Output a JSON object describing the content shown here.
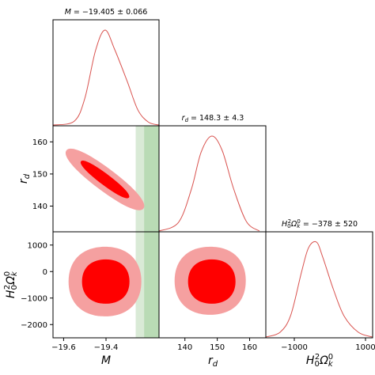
{
  "chart_data": [
    {
      "type": "line",
      "panel": "M",
      "title": "M = −19.405 ± 0.066",
      "title_parts": {
        "lead": "M",
        "rest": " = −19.405 ± 0.066"
      },
      "x": [
        -19.65,
        -19.55,
        -19.5,
        -19.45,
        -19.405,
        -19.36,
        -19.3,
        -19.25,
        -19.2,
        -19.15
      ],
      "y": [
        0.0,
        0.04,
        0.28,
        0.78,
        1.0,
        0.8,
        0.46,
        0.16,
        0.03,
        0.0
      ],
      "xlim": [
        -19.65,
        -19.15
      ],
      "color": "#d9534f"
    },
    {
      "type": "line",
      "panel": "r_d",
      "title": "r_d = 148.3 ± 4.3",
      "title_parts": {
        "lead": "r",
        "sub": "d",
        "rest": " = 148.3 ± 4.3"
      },
      "x": [
        132,
        138,
        142,
        145,
        148.3,
        151.5,
        155,
        159,
        163
      ],
      "y": [
        0.0,
        0.09,
        0.44,
        0.83,
        1.0,
        0.85,
        0.45,
        0.1,
        0.0
      ],
      "xlim": [
        132,
        165
      ],
      "color": "#d9534f"
    },
    {
      "type": "line",
      "panel": "H0^2 Omega_k^0",
      "title": "H0^2 Ωk^0 = −378 ± 520",
      "title_parts": {
        "lead": "H",
        "sub": "0",
        "sup": "2",
        "omega": "Ω",
        "osub": "k",
        "osup": "0",
        "rest": " = −378 ± 520"
      },
      "x": [
        -1800,
        -1400,
        -1100,
        -800,
        -600,
        -378,
        -200,
        100,
        400,
        800,
        1200
      ],
      "y": [
        0.0,
        0.05,
        0.23,
        0.68,
        0.94,
        1.0,
        0.84,
        0.5,
        0.22,
        0.05,
        0.0
      ],
      "xlim": [
        -1800,
        1200
      ],
      "color": "#d9534f"
    },
    {
      "type": "contour",
      "panel": "M vs r_d",
      "x_param": "M",
      "y_param": "r_d",
      "xlim": [
        -19.65,
        -19.15
      ],
      "ylim": [
        132,
        165
      ],
      "center": [
        -19.405,
        148.3
      ],
      "levels": [
        "95%",
        "68%"
      ],
      "fill_colors": [
        "#f5a0a0",
        "#ff0000"
      ],
      "band": {
        "outer": [
          -19.26,
          -19.15
        ],
        "inner": [
          -19.22,
          -19.15
        ],
        "colors": [
          "#d9ead6",
          "#b9dbb5"
        ]
      }
    },
    {
      "type": "contour",
      "panel": "M vs H0^2 Omega_k^0",
      "x_param": "M",
      "y_param": "H0^2 Omega_k^0",
      "xlim": [
        -19.65,
        -19.15
      ],
      "ylim": [
        -2500,
        1500
      ],
      "center": [
        -19.405,
        -378
      ],
      "levels": [
        "95%",
        "68%"
      ],
      "fill_colors": [
        "#f5a0a0",
        "#ff0000"
      ],
      "band": {
        "outer": [
          -19.26,
          -19.15
        ],
        "inner": [
          -19.22,
          -19.15
        ],
        "colors": [
          "#d9ead6",
          "#b9dbb5"
        ]
      }
    },
    {
      "type": "contour",
      "panel": "r_d vs H0^2 Omega_k^0",
      "x_param": "r_d",
      "y_param": "H0^2 Omega_k^0",
      "xlim": [
        132,
        165
      ],
      "ylim": [
        -2500,
        1500
      ],
      "center": [
        148.3,
        -378
      ],
      "levels": [
        "95%",
        "68%"
      ],
      "fill_colors": [
        "#f5a0a0",
        "#ff0000"
      ]
    }
  ],
  "axes": {
    "M": {
      "label": "M",
      "ticks": [
        -19.6,
        -19.4
      ],
      "tick_labels": [
        "−19.6",
        "−19.4"
      ]
    },
    "r_d": {
      "label_main": "r",
      "label_sub": "d",
      "ticks": [
        140,
        150,
        160
      ],
      "tick_labels": [
        "140",
        "150",
        "160"
      ]
    },
    "H": {
      "label_main": "H",
      "label_sub": "0",
      "label_sup": "2",
      "label_omega": "Ω",
      "label_osub": "k",
      "label_osup": "0",
      "x_ticks": [
        -1000,
        1000
      ],
      "x_tick_labels": [
        "−1000",
        "1000"
      ],
      "y_ticks": [
        1000,
        0,
        -1000,
        -2000
      ],
      "y_tick_labels": [
        "1000",
        "0",
        "−1000",
        "−2000"
      ]
    }
  }
}
